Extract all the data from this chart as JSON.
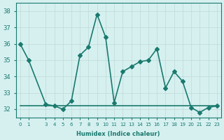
{
  "xlabel": "Humidex (Indice chaleur)",
  "x_values": [
    0,
    1,
    3,
    4,
    5,
    6,
    7,
    8,
    9,
    10,
    11,
    12,
    13,
    14,
    15,
    16,
    17,
    18,
    19,
    20,
    21,
    22,
    23
  ],
  "y_main": [
    36,
    35,
    32.3,
    32.2,
    32.0,
    32.5,
    35.3,
    35.8,
    37.8,
    36.4,
    32.4,
    34.3,
    34.6,
    34.9,
    35.0,
    35.7,
    33.3,
    34.3,
    33.7,
    32.1,
    31.8,
    32.1,
    32.2
  ],
  "y_flat": [
    32.2,
    32.2,
    32.2,
    32.2,
    32.2,
    32.2,
    32.2,
    32.2,
    32.2,
    32.2,
    32.2,
    32.2,
    32.2,
    32.2,
    32.2,
    32.2,
    32.2,
    32.2,
    32.2,
    32.2,
    32.2,
    32.2,
    32.2
  ],
  "ylim": [
    31.5,
    38.5
  ],
  "yticks": [
    32,
    33,
    34,
    35,
    36,
    37,
    38
  ],
  "line_color": "#1a7a6e",
  "bg_color": "#d6f0f0",
  "grid_color": "#c0dada",
  "marker": "D",
  "marker_size": 3,
  "line_width": 1.2
}
